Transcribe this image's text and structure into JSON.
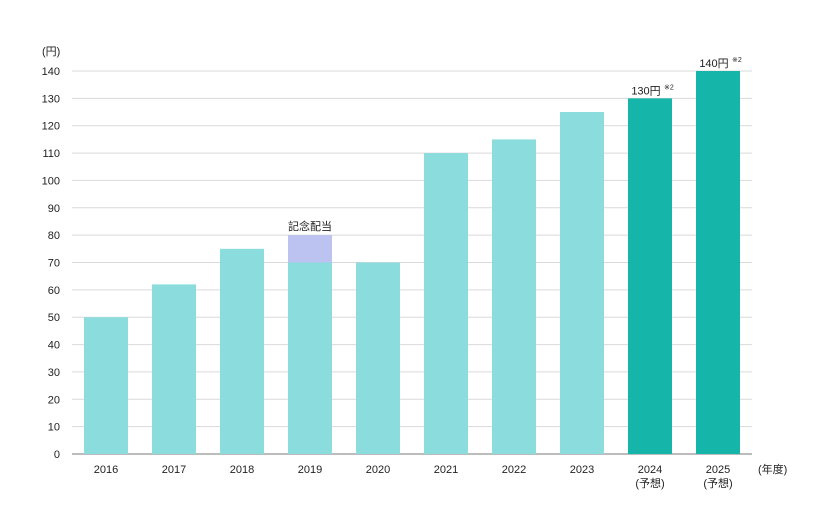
{
  "chart_data": {
    "type": "bar",
    "y_unit_label": "(円)",
    "x_unit_label": "(年度)",
    "categories": [
      "2016",
      "2017",
      "2018",
      "2019",
      "2020",
      "2021",
      "2022",
      "2023",
      "2024",
      "2025"
    ],
    "category_sublabels": [
      "",
      "",
      "",
      "",
      "",
      "",
      "",
      "",
      "(予想)",
      "(予想)"
    ],
    "values": [
      50,
      62,
      75,
      70,
      70,
      110,
      115,
      125,
      130,
      140
    ],
    "commemorative": {
      "label": "記念配当",
      "category": "2019",
      "value": 10
    },
    "forecast_categories": [
      "2024",
      "2025"
    ],
    "bar_labels": [
      {
        "category": "2024",
        "text": "130円",
        "sup": "※2"
      },
      {
        "category": "2025",
        "text": "140円",
        "sup": "※2"
      }
    ],
    "ylim": [
      0,
      140
    ],
    "yticks": [
      0,
      10,
      20,
      30,
      40,
      50,
      60,
      70,
      80,
      90,
      100,
      110,
      120,
      130,
      140
    ],
    "grid": true,
    "colors": {
      "actual": "#8adcdd",
      "forecast": "#15b5a9",
      "commemorative": "#bcc3f1",
      "grid": "#d9d9d9",
      "axis": "#7a7a7a"
    }
  }
}
